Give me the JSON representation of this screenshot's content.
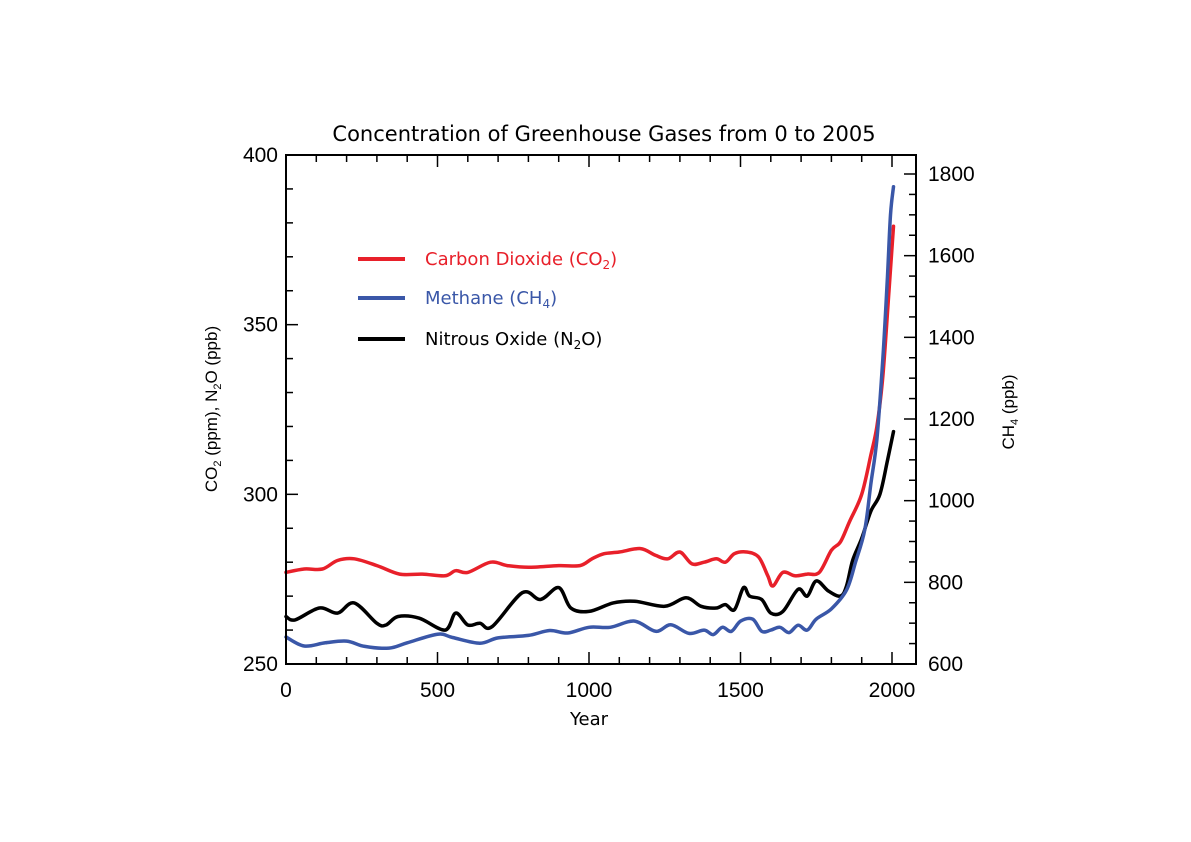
{
  "chart_data": {
    "type": "line",
    "title": "Concentration of Greenhouse Gases from 0 to 2005",
    "xlabel": "Year",
    "ylabel_left": {
      "prefix": "CO",
      "sub": "2",
      "mid": " (ppm), N",
      "sub2": "2",
      "suffix": "O (ppb)"
    },
    "ylabel_right": {
      "prefix": "CH",
      "sub": "4",
      "suffix": " (ppb)"
    },
    "xlim": [
      0,
      2080
    ],
    "ylim_left": [
      250,
      400
    ],
    "ylim_right": [
      600,
      1846
    ],
    "x_ticks": [
      0,
      500,
      1000,
      1500,
      2000
    ],
    "x_tick_labels": [
      "0",
      "500",
      "1000",
      "1500",
      "2000"
    ],
    "x_minor_step": 100,
    "y_left_ticks": [
      250,
      300,
      350,
      400
    ],
    "y_left_tick_labels": [
      "250",
      "300",
      "350",
      "400"
    ],
    "y_left_minor_step": 10,
    "y_right_ticks": [
      600,
      800,
      1000,
      1200,
      1400,
      1600,
      1800
    ],
    "y_right_tick_labels": [
      "600",
      "800",
      "1000",
      "1200",
      "1400",
      "1600",
      "1800"
    ],
    "y_right_minor_step": 50,
    "grid": false,
    "legend_position": "top-left",
    "series": [
      {
        "name": "Carbon Dioxide (CO2)",
        "legend": {
          "prefix": "Carbon Dioxide (CO",
          "sub": "2",
          "suffix": ")"
        },
        "color": "#e8202a",
        "axis": "left",
        "x": [
          0,
          60,
          120,
          170,
          225,
          300,
          375,
          450,
          525,
          560,
          600,
          675,
          730,
          800,
          900,
          970,
          1010,
          1050,
          1100,
          1170,
          1220,
          1260,
          1300,
          1340,
          1380,
          1420,
          1450,
          1480,
          1520,
          1560,
          1590,
          1607,
          1640,
          1680,
          1720,
          1760,
          1800,
          1830,
          1860,
          1900,
          1930,
          1950,
          1970,
          1990,
          2005
        ],
        "values": [
          277,
          278,
          278,
          280.5,
          281,
          279,
          276.5,
          276.5,
          276,
          277.5,
          277,
          280,
          279,
          278.5,
          279,
          279,
          281,
          282.5,
          283,
          284,
          282,
          281,
          283,
          279.5,
          280,
          281,
          280,
          282.5,
          283,
          281.5,
          276,
          273,
          277,
          276,
          276.5,
          277,
          283.5,
          286,
          292,
          300,
          311.5,
          320,
          335,
          360,
          379
        ]
      },
      {
        "name": "Methane (CH4)",
        "legend": {
          "prefix": "Methane (CH",
          "sub": "4",
          "suffix": ")"
        },
        "color": "#3a57a8",
        "axis": "right",
        "x": [
          0,
          60,
          130,
          200,
          260,
          340,
          400,
          500,
          550,
          640,
          700,
          800,
          870,
          930,
          1000,
          1070,
          1150,
          1220,
          1270,
          1330,
          1380,
          1410,
          1440,
          1470,
          1500,
          1540,
          1570,
          1600,
          1630,
          1660,
          1690,
          1720,
          1750,
          1800,
          1850,
          1880,
          1910,
          1930,
          1950,
          1970,
          1985,
          1995,
          2005
        ],
        "values": [
          666,
          644,
          652,
          656,
          643,
          639,
          652,
          673,
          665,
          651,
          664,
          670,
          682,
          676,
          690,
          690,
          705,
          680,
          696,
          675,
          683,
          672,
          690,
          680,
          705,
          710,
          680,
          683,
          690,
          677,
          695,
          683,
          710,
          735,
          781,
          850,
          928,
          1040,
          1150,
          1350,
          1550,
          1700,
          1769
        ]
      },
      {
        "name": "Nitrous Oxide (N2O)",
        "legend": {
          "prefix": "Nitrous Oxide (N",
          "sub": "2",
          "suffix": "O)"
        },
        "color": "#000000",
        "axis": "left",
        "x": [
          0,
          30,
          110,
          170,
          225,
          300,
          330,
          370,
          440,
          525,
          560,
          600,
          640,
          680,
          780,
          840,
          900,
          940,
          1000,
          1080,
          1150,
          1250,
          1320,
          1370,
          1420,
          1450,
          1480,
          1510,
          1530,
          1570,
          1600,
          1640,
          1690,
          1720,
          1750,
          1790,
          1830,
          1850,
          1870,
          1900,
          1930,
          1960,
          1985,
          2005
        ],
        "values": [
          264,
          263,
          266.5,
          265,
          268,
          262,
          261.5,
          264,
          263.5,
          260,
          265,
          261.5,
          262,
          261,
          271,
          269,
          272.5,
          266.5,
          265.5,
          268,
          268.5,
          267,
          269.5,
          267,
          266.5,
          267.5,
          266,
          272.5,
          270,
          269,
          265,
          265.5,
          272,
          270,
          274.5,
          271.5,
          270,
          273,
          280.5,
          287,
          295,
          300,
          310,
          318.5
        ]
      }
    ]
  }
}
